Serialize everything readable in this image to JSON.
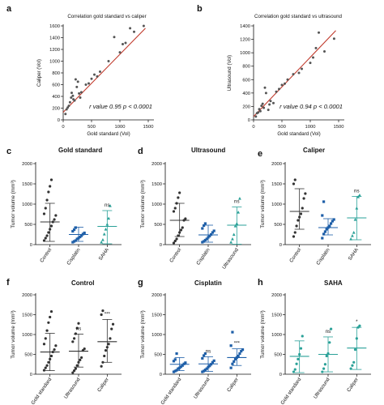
{
  "chart_data": [
    {
      "panel": "a",
      "type": "scatter",
      "title": "Correlation gold standard vs caliper",
      "xlabel": "Gold standard (Vol)",
      "ylabel": "Caliper (Vol)",
      "xlim": [
        0,
        1600
      ],
      "ylim": [
        0,
        1600
      ],
      "xticks": [
        0,
        500,
        1000,
        1500
      ],
      "yticks": [
        0,
        200,
        400,
        600,
        800,
        1000,
        1200,
        1400,
        1600
      ],
      "annotation": "r value 0.95 p < 0.0001",
      "fit": {
        "x": [
          0,
          1450
        ],
        "y": [
          130,
          1560
        ]
      },
      "color": "#c0392b",
      "points": [
        [
          40,
          100
        ],
        [
          60,
          180
        ],
        [
          80,
          210
        ],
        [
          100,
          240
        ],
        [
          120,
          300
        ],
        [
          140,
          380
        ],
        [
          150,
          460
        ],
        [
          170,
          410
        ],
        [
          180,
          350
        ],
        [
          200,
          330
        ],
        [
          220,
          690
        ],
        [
          240,
          560
        ],
        [
          260,
          650
        ],
        [
          280,
          450
        ],
        [
          300,
          380
        ],
        [
          320,
          470
        ],
        [
          400,
          600
        ],
        [
          450,
          620
        ],
        [
          500,
          700
        ],
        [
          550,
          770
        ],
        [
          600,
          740
        ],
        [
          650,
          820
        ],
        [
          800,
          1000
        ],
        [
          900,
          1410
        ],
        [
          1000,
          1150
        ],
        [
          1050,
          1290
        ],
        [
          1100,
          1310
        ],
        [
          1180,
          1560
        ],
        [
          1250,
          1500
        ],
        [
          1420,
          1600
        ]
      ]
    },
    {
      "panel": "b",
      "type": "scatter",
      "title": "Correlation gold standard vs ultrasound",
      "xlabel": "Gold standard (Vol)",
      "ylabel": "Ultrasound (Vol)",
      "xlim": [
        0,
        1600
      ],
      "ylim": [
        0,
        1400
      ],
      "xticks": [
        0,
        500,
        1000,
        1500
      ],
      "yticks": [
        0,
        200,
        400,
        600,
        800,
        1000,
        1200,
        1400
      ],
      "annotation": "r value 0.94 p < 0.0001",
      "fit": {
        "x": [
          0,
          1450
        ],
        "y": [
          50,
          1330
        ]
      },
      "color": "#c0392b",
      "points": [
        [
          40,
          50
        ],
        [
          60,
          100
        ],
        [
          80,
          110
        ],
        [
          100,
          160
        ],
        [
          120,
          130
        ],
        [
          140,
          210
        ],
        [
          160,
          240
        ],
        [
          180,
          180
        ],
        [
          200,
          480
        ],
        [
          220,
          400
        ],
        [
          260,
          150
        ],
        [
          280,
          230
        ],
        [
          300,
          280
        ],
        [
          350,
          250
        ],
        [
          400,
          420
        ],
        [
          450,
          460
        ],
        [
          500,
          520
        ],
        [
          550,
          540
        ],
        [
          600,
          600
        ],
        [
          700,
          680
        ],
        [
          800,
          700
        ],
        [
          850,
          760
        ],
        [
          1000,
          850
        ],
        [
          1050,
          930
        ],
        [
          1100,
          1070
        ],
        [
          1150,
          1300
        ],
        [
          1250,
          1020
        ],
        [
          1420,
          1210
        ]
      ]
    },
    {
      "panel": "c",
      "type": "scatter",
      "title": "Gold standard",
      "ylabel": "Tumor volume (mm³)",
      "ylim": [
        0,
        2000
      ],
      "yticks": [
        0,
        500,
        1000,
        1500,
        2000
      ],
      "categories": [
        "Control",
        "Cisplatin",
        "SAHA"
      ],
      "groups": [
        {
          "name": "Control",
          "color": "#333333",
          "marker": "circle",
          "mean": 560,
          "sd": [
            80,
            1020
          ],
          "points": [
            100,
            160,
            220,
            300,
            380,
            460,
            560,
            620,
            720,
            760,
            900,
            1100,
            1300,
            1440,
            1600
          ]
        },
        {
          "name": "Cisplatin",
          "color": "#1e5fa8",
          "marker": "square",
          "mean": 250,
          "sd": [
            80,
            430
          ],
          "points": [
            60,
            80,
            100,
            140,
            160,
            190,
            220,
            260,
            290,
            330,
            370,
            420
          ]
        },
        {
          "name": "SAHA",
          "color": "#2aa198",
          "marker": "triangle",
          "mean": 450,
          "sd": [
            20,
            840
          ],
          "points": [
            60,
            120,
            260,
            380,
            500,
            650,
            960
          ]
        }
      ],
      "significance": [
        "",
        "",
        "ns"
      ]
    },
    {
      "panel": "d",
      "type": "scatter",
      "title": "Ultrasound",
      "ylabel": "Tumor volume (mm³)",
      "ylim": [
        0,
        2000
      ],
      "yticks": [
        0,
        500,
        1000,
        1500,
        2000
      ],
      "categories": [
        "Control",
        "Cisplatin",
        "Ultrasound"
      ],
      "groups": [
        {
          "name": "Control",
          "color": "#333333",
          "marker": "circle",
          "mean": 600,
          "sd": [
            200,
            1020
          ],
          "points": [
            40,
            90,
            140,
            220,
            300,
            360,
            420,
            600,
            640,
            820,
            900,
            1020,
            1160,
            1280
          ]
        },
        {
          "name": "Cisplatin",
          "color": "#1e5fa8",
          "marker": "square",
          "mean": 240,
          "sd": [
            60,
            480
          ],
          "points": [
            60,
            80,
            110,
            140,
            180,
            210,
            250,
            300,
            340,
            400,
            470,
            520
          ]
        },
        {
          "name": "Ultrasound",
          "color": "#2aa198",
          "marker": "triangle",
          "mean": 480,
          "sd": [
            10,
            930
          ],
          "points": [
            60,
            140,
            250,
            460,
            520,
            800,
            1140
          ]
        }
      ],
      "significance": [
        "",
        "",
        "ns"
      ]
    },
    {
      "panel": "e",
      "type": "scatter",
      "title": "Caliper",
      "ylabel": "Tumor volume (mm³)",
      "ylim": [
        0,
        2000
      ],
      "yticks": [
        0,
        500,
        1000,
        1500,
        2000
      ],
      "categories": [
        "Control",
        "Cisplatin",
        "SAHA"
      ],
      "groups": [
        {
          "name": "Control",
          "color": "#333333",
          "marker": "circle",
          "mean": 820,
          "sd": [
            380,
            1380
          ],
          "points": [
            200,
            300,
            460,
            600,
            680,
            760,
            900,
            1140,
            1260,
            1500,
            1600
          ]
        },
        {
          "name": "Cisplatin",
          "color": "#1e5fa8",
          "marker": "square",
          "mean": 420,
          "sd": [
            240,
            640
          ],
          "points": [
            160,
            260,
            320,
            380,
            420,
            460,
            520,
            580,
            620,
            720,
            1060
          ]
        },
        {
          "name": "SAHA",
          "color": "#2aa198",
          "marker": "triangle",
          "mean": 660,
          "sd": [
            120,
            1190
          ],
          "points": [
            140,
            220,
            300,
            620,
            900,
            1180,
            1220
          ]
        }
      ],
      "significance": [
        "",
        "",
        "ns"
      ]
    },
    {
      "panel": "f",
      "type": "scatter",
      "title": "Control",
      "ylabel": "Tumor volume (mm³)",
      "ylim": [
        0,
        2000
      ],
      "yticks": [
        0,
        500,
        1000,
        1500,
        2000
      ],
      "categories": [
        "Gold standard",
        "Ultrasound",
        "Caliper"
      ],
      "groups": [
        {
          "name": "Gold standard",
          "color": "#333333",
          "marker": "circle",
          "mean": 560,
          "sd": [
            90,
            1030
          ],
          "points": [
            100,
            160,
            220,
            300,
            380,
            460,
            560,
            620,
            720,
            760,
            900,
            1100,
            1300,
            1440,
            1580
          ]
        },
        {
          "name": "Ultrasound",
          "color": "#333333",
          "marker": "circle",
          "mean": 580,
          "sd": [
            180,
            1010
          ],
          "points": [
            40,
            90,
            140,
            220,
            300,
            360,
            420,
            600,
            640,
            820,
            900,
            1020,
            1160,
            1280
          ]
        },
        {
          "name": "Caliper",
          "color": "#333333",
          "marker": "circle",
          "mean": 820,
          "sd": [
            300,
            1380
          ],
          "points": [
            200,
            300,
            460,
            600,
            680,
            760,
            900,
            1140,
            1260,
            1500,
            1600
          ]
        }
      ],
      "significance": [
        "",
        "ns",
        "***"
      ]
    },
    {
      "panel": "g",
      "type": "scatter",
      "title": "Cisplatin",
      "ylabel": "Tumor volume (mm³)",
      "ylim": [
        0,
        2000
      ],
      "yticks": [
        0,
        500,
        1000,
        1500,
        2000
      ],
      "categories": [
        "Gold standard",
        "Ultrasound",
        "Caliper"
      ],
      "groups": [
        {
          "name": "Gold standard",
          "color": "#1e5fa8",
          "marker": "square",
          "mean": 250,
          "sd": [
            90,
            420
          ],
          "points": [
            60,
            80,
            100,
            140,
            160,
            190,
            220,
            260,
            290,
            330,
            370,
            520
          ]
        },
        {
          "name": "Ultrasound",
          "color": "#1e5fa8",
          "marker": "square",
          "mean": 260,
          "sd": [
            70,
            440
          ],
          "points": [
            60,
            80,
            110,
            140,
            180,
            210,
            250,
            300,
            340,
            400,
            470,
            520
          ]
        },
        {
          "name": "Caliper",
          "color": "#1e5fa8",
          "marker": "square",
          "mean": 420,
          "sd": [
            220,
            640
          ],
          "points": [
            160,
            260,
            320,
            380,
            420,
            460,
            520,
            580,
            620,
            720,
            1060
          ]
        }
      ],
      "significance": [
        "",
        "ns",
        "***"
      ]
    },
    {
      "panel": "h",
      "type": "scatter",
      "title": "SAHA",
      "ylabel": "Tumor volume (mm³)",
      "ylim": [
        0,
        2000
      ],
      "yticks": [
        0,
        500,
        1000,
        1500,
        2000
      ],
      "categories": [
        "Gold standard",
        "Ultrasound",
        "Caliper"
      ],
      "groups": [
        {
          "name": "Gold standard",
          "color": "#2aa198",
          "marker": "circle",
          "mean": 450,
          "sd": [
            40,
            840
          ],
          "points": [
            60,
            120,
            260,
            380,
            500,
            650,
            960
          ]
        },
        {
          "name": "Ultrasound",
          "color": "#2aa198",
          "marker": "circle",
          "mean": 500,
          "sd": [
            60,
            940
          ],
          "points": [
            60,
            140,
            250,
            460,
            520,
            800,
            1140
          ]
        },
        {
          "name": "Caliper",
          "color": "#2aa198",
          "marker": "circle",
          "mean": 660,
          "sd": [
            120,
            1180
          ],
          "points": [
            140,
            220,
            300,
            620,
            900,
            1180,
            1220
          ]
        }
      ],
      "significance": [
        "",
        "ns",
        "*"
      ]
    }
  ]
}
